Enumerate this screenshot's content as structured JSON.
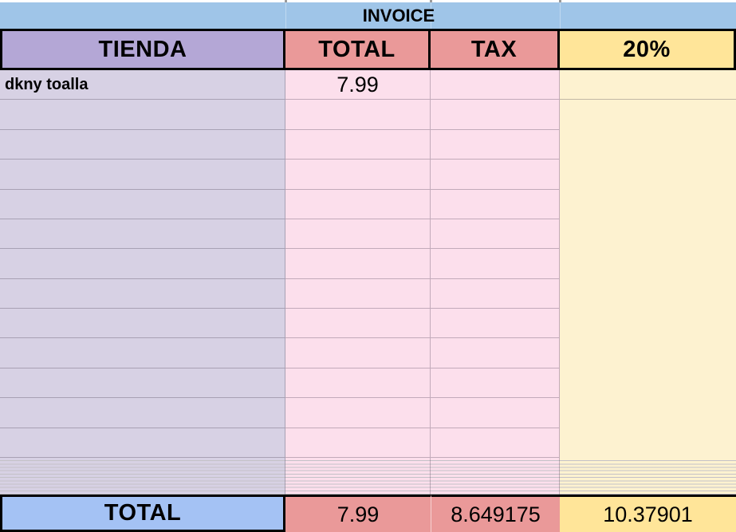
{
  "title": "INVOICE",
  "header": {
    "columns": [
      "TIENDA",
      "TOTAL",
      "TAX",
      "20%"
    ]
  },
  "body": {
    "normal_row_count": 13,
    "thin_row_count": 11,
    "first_row": {
      "tienda": "dkny toalla",
      "total": "7.99",
      "tax": "",
      "pct": ""
    }
  },
  "footer": {
    "label": "TOTAL",
    "total": "7.99",
    "tax": "8.649175",
    "pct": "10.37901"
  },
  "colors": {
    "title_band": "#9fc5e8",
    "header_tienda": "#b4a7d6",
    "header_total": "#ea9999",
    "header_tax": "#ea9999",
    "header_pct": "#ffe599",
    "body_tienda": "#d7d1e4",
    "body_total": "#fcdfec",
    "body_tax": "#fcdfec",
    "body_pct": "#fdf2d0",
    "footer_label": "#a4c2f4",
    "footer_total": "#ea9999",
    "footer_tax": "#ea9999",
    "footer_pct": "#ffe599",
    "border": "#000000",
    "gridline": "rgba(60,50,70,0.30)",
    "footer_divider": "rgba(255,255,255,0.55)",
    "tick": "#9a9a9a"
  }
}
